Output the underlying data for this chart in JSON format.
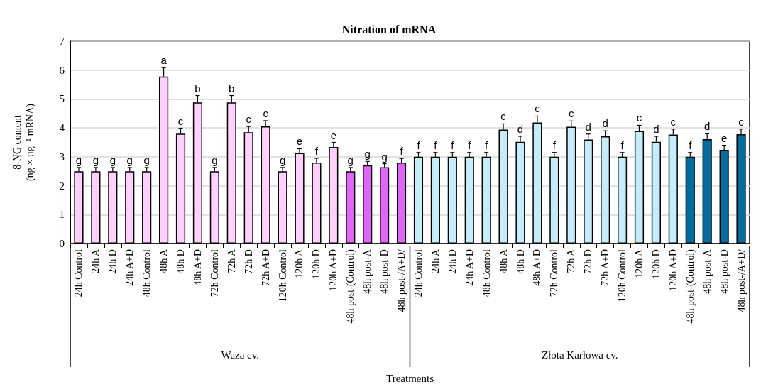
{
  "chart_data": {
    "type": "bar",
    "title": "Nitration of mRNA",
    "xlabel": "Treatments",
    "ylabel": "8-NG content\n(ng × µg⁻¹ mRNA)",
    "categories": [
      "24h Control",
      "24h A",
      "24h D",
      "24h A+D",
      "48h Control",
      "48h A",
      "48h D",
      "48h A+D",
      "72h Control",
      "72h A",
      "72h D",
      "72h A+D",
      "120h Control",
      "120h A",
      "120h D",
      "120h A+D",
      "48h post-(Control)",
      "48h post-A",
      "48h post-D",
      "48h post-/A+D/",
      "24h Control",
      "24h A",
      "24h D",
      "24h A+D",
      "48h Control",
      "48h A",
      "48h D",
      "48h A+D",
      "72h Control",
      "72h A",
      "72h D",
      "72h A+D",
      "120h Control",
      "120h A",
      "120h D",
      "120h A+D",
      "48h post-(Control)",
      "48h post-A",
      "48h post-D",
      "48h post-/A+D/"
    ],
    "values": [
      2.5,
      2.5,
      2.5,
      2.5,
      2.5,
      5.78,
      3.8,
      4.88,
      2.5,
      4.88,
      3.85,
      4.05,
      2.5,
      3.13,
      2.8,
      3.34,
      2.5,
      2.71,
      2.64,
      2.8,
      3.0,
      3.0,
      3.0,
      3.0,
      3.0,
      3.94,
      3.52,
      4.19,
      3.0,
      4.04,
      3.6,
      3.71,
      3.0,
      3.89,
      3.52,
      3.77,
      3.0,
      3.61,
      3.24,
      3.78
    ],
    "errors": [
      0.13,
      0.13,
      0.13,
      0.13,
      0.13,
      0.3,
      0.19,
      0.24,
      0.13,
      0.24,
      0.2,
      0.2,
      0.13,
      0.15,
      0.15,
      0.16,
      0.13,
      0.13,
      0.12,
      0.14,
      0.15,
      0.15,
      0.15,
      0.15,
      0.15,
      0.2,
      0.19,
      0.22,
      0.15,
      0.2,
      0.19,
      0.19,
      0.15,
      0.2,
      0.19,
      0.19,
      0.15,
      0.19,
      0.16,
      0.18
    ],
    "value_labels": [
      "g",
      "g",
      "g",
      "g",
      "g",
      "a",
      "c",
      "b",
      "g",
      "b",
      "c",
      "c",
      "g",
      "e",
      "f",
      "e",
      "g",
      "g",
      "g",
      "f",
      "f",
      "f",
      "f",
      "f",
      "f",
      "c",
      "d",
      "c",
      "f",
      "c",
      "d",
      "d",
      "f",
      "c",
      "d",
      "c",
      "f",
      "d",
      "e",
      "c"
    ],
    "colors": [
      "#ffd1fb",
      "#ffd1fb",
      "#ffd1fb",
      "#ffd1fb",
      "#ffd1fb",
      "#ffd1fb",
      "#ffd1fb",
      "#ffd1fb",
      "#ffd1fb",
      "#ffd1fb",
      "#ffd1fb",
      "#ffd1fb",
      "#ffd1fb",
      "#ffd1fb",
      "#ffd1fb",
      "#ffd1fb",
      "#e066f8",
      "#e066f8",
      "#e066f8",
      "#e066f8",
      "#c5ecf9",
      "#c5ecf9",
      "#c5ecf9",
      "#c5ecf9",
      "#c5ecf9",
      "#c5ecf9",
      "#c5ecf9",
      "#c5ecf9",
      "#c5ecf9",
      "#c5ecf9",
      "#c5ecf9",
      "#c5ecf9",
      "#c5ecf9",
      "#c5ecf9",
      "#c5ecf9",
      "#c5ecf9",
      "#006c9e",
      "#006c9e",
      "#006c9e",
      "#006c9e"
    ],
    "annotations": [
      "Waza cv.",
      "Złota Karłowa cv."
    ],
    "ylim": [
      0,
      7
    ],
    "yticks": [
      0,
      1,
      2,
      3,
      4,
      5,
      6,
      7
    ],
    "grid": "y"
  }
}
